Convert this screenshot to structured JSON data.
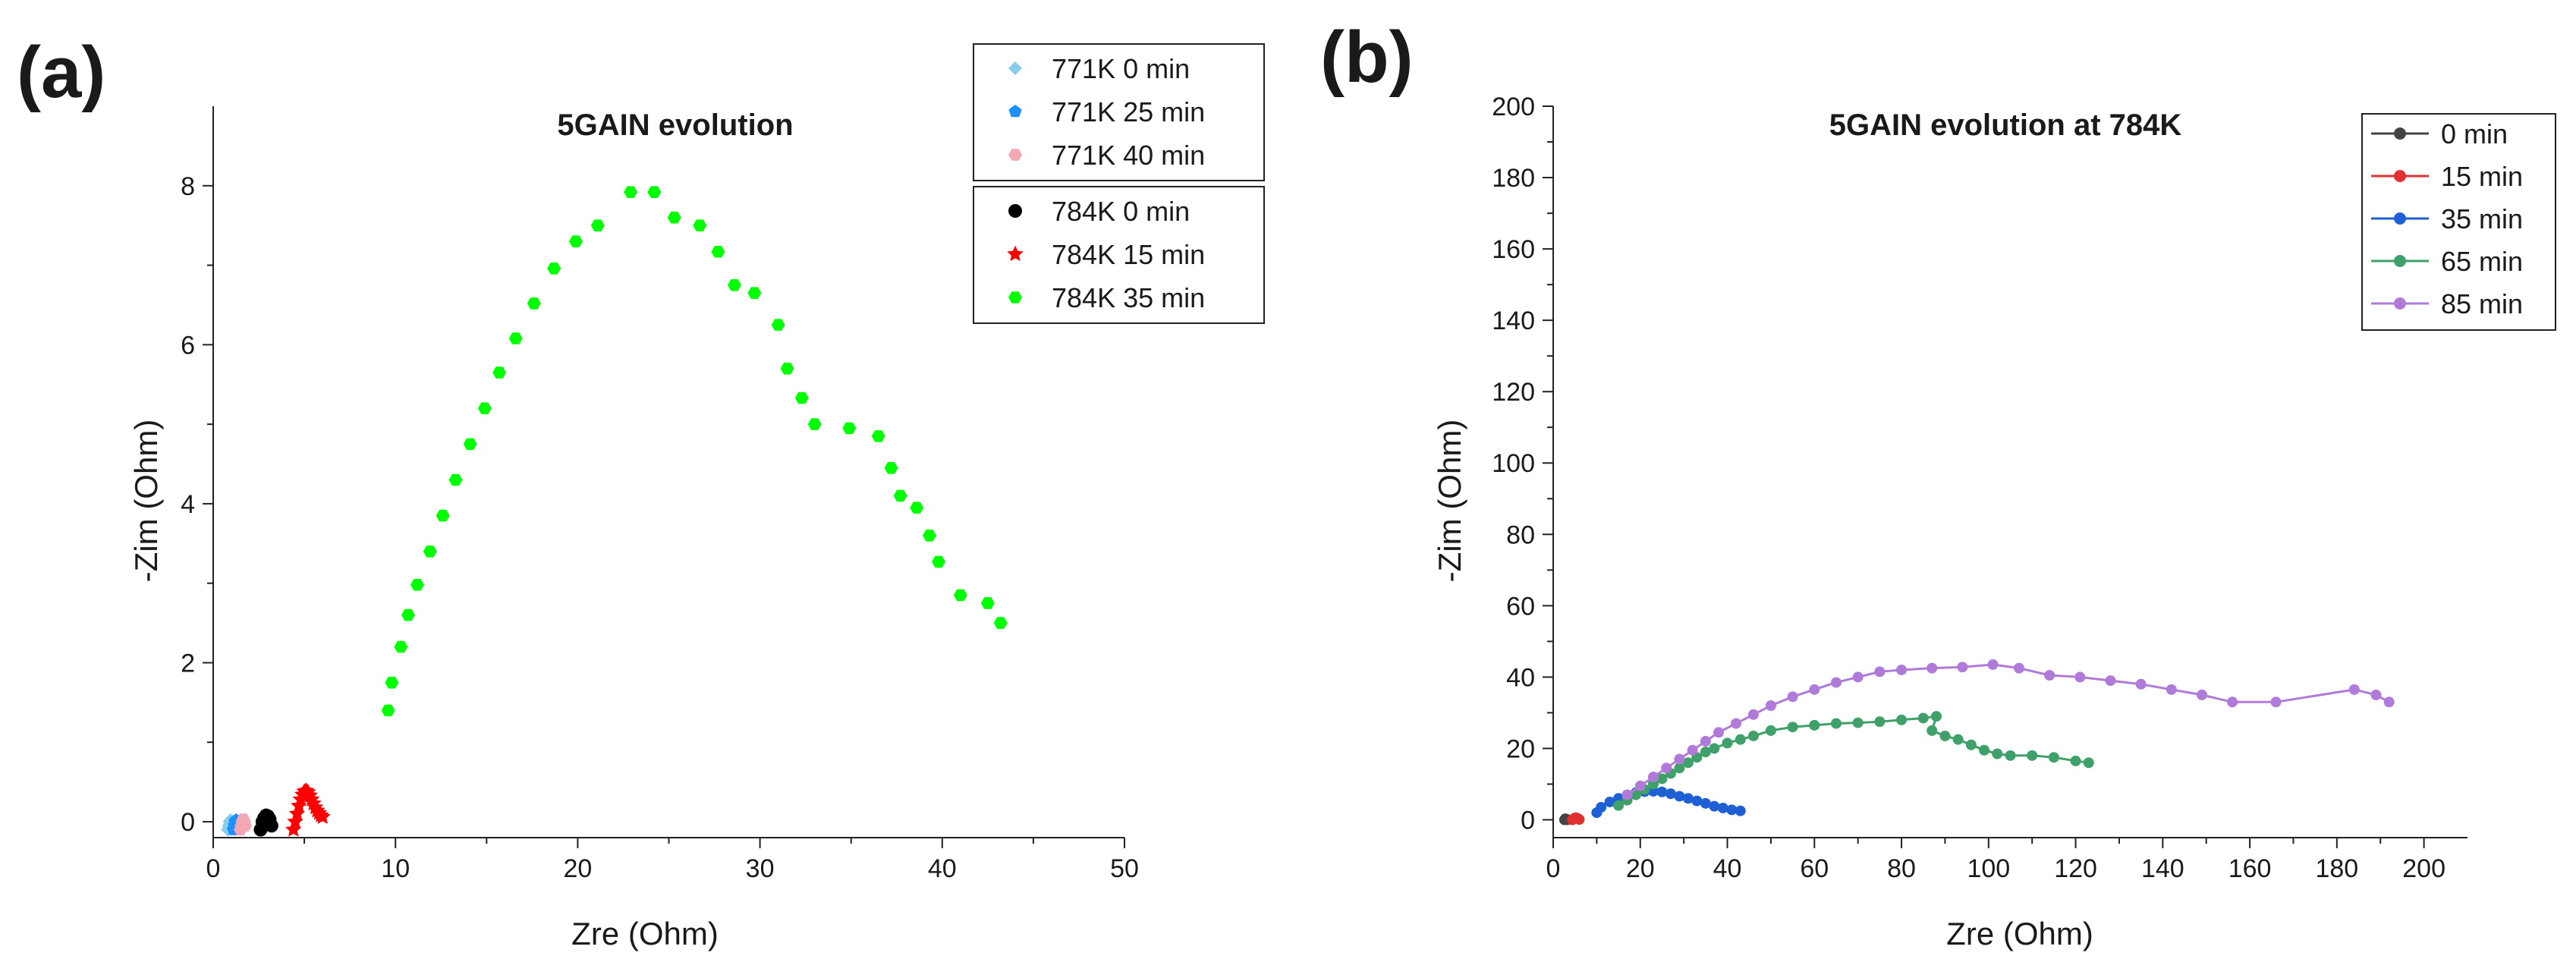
{
  "panels": [
    {
      "label": "(a)"
    },
    {
      "label": "(b)"
    }
  ],
  "chart_data": [
    {
      "type": "scatter",
      "title": "5GAIN evolution",
      "xlabel": "Zre (Ohm)",
      "ylabel": "-Zim (Ohm)",
      "xlim": [
        0,
        50
      ],
      "ylim": [
        -0.2,
        9
      ],
      "xticks": [
        0,
        10,
        20,
        30,
        40,
        50
      ],
      "yticks": [
        0,
        2,
        4,
        6,
        8
      ],
      "legend_groups": [
        [
          "771K  0 min",
          "771K 25 min",
          "771K 40 min"
        ],
        [
          "784K 0 min",
          "784K 15 min",
          "784K 35 min"
        ]
      ],
      "series": [
        {
          "name": "771K  0 min",
          "color": "#87ceeb",
          "marker": "diamond",
          "x": [
            0.8,
            0.85,
            0.9,
            0.95,
            1.0,
            1.05
          ],
          "y": [
            -0.1,
            -0.05,
            0.0,
            0.02,
            0.0,
            -0.05
          ]
        },
        {
          "name": "771K 25 min",
          "color": "#1e90ff",
          "marker": "pentagon",
          "x": [
            1.1,
            1.15,
            1.2,
            1.25,
            1.3
          ],
          "y": [
            -0.1,
            -0.05,
            0.0,
            0.02,
            0.0
          ]
        },
        {
          "name": "771K 40 min",
          "color": "#f4a7b5",
          "marker": "hexagon",
          "x": [
            1.5,
            1.55,
            1.6,
            1.65,
            1.7,
            1.75
          ],
          "y": [
            -0.1,
            -0.05,
            0.0,
            0.03,
            0.0,
            -0.05
          ]
        },
        {
          "name": "784K 0 min",
          "color": "#000000",
          "marker": "circle",
          "x": [
            2.6,
            2.7,
            2.8,
            2.9,
            3.0,
            3.1,
            3.2
          ],
          "y": [
            -0.1,
            0.0,
            0.05,
            0.08,
            0.07,
            0.03,
            -0.05
          ]
        },
        {
          "name": "784K 15 min",
          "color": "#ff0000",
          "marker": "star",
          "x": [
            4.4,
            4.5,
            4.6,
            4.7,
            4.8,
            4.9,
            5.0,
            5.1,
            5.2,
            5.3,
            5.4,
            5.5,
            5.6,
            5.7,
            5.8,
            5.9,
            6.0
          ],
          "y": [
            -0.1,
            0.0,
            0.1,
            0.2,
            0.28,
            0.34,
            0.38,
            0.39,
            0.37,
            0.33,
            0.28,
            0.23,
            0.18,
            0.14,
            0.11,
            0.08,
            0.06
          ]
        },
        {
          "name": "784K 35 min",
          "color": "#00ff00",
          "marker": "hexagon",
          "x": [
            9.6,
            9.8,
            10.3,
            10.7,
            11.2,
            11.9,
            12.6,
            13.3,
            14.1,
            14.9,
            15.7,
            16.6,
            17.6,
            18.7,
            19.9,
            21.1,
            22.9,
            24.2,
            25.3,
            26.7,
            27.7,
            28.6,
            29.7,
            31.0,
            31.5,
            32.3,
            33.0,
            34.9,
            36.5,
            37.2,
            37.7,
            38.6,
            39.3,
            39.8,
            41.0,
            42.5,
            43.2
          ],
          "y": [
            1.4,
            1.75,
            2.2,
            2.6,
            2.98,
            3.4,
            3.85,
            4.3,
            4.75,
            5.2,
            5.65,
            6.08,
            6.52,
            6.96,
            7.3,
            7.5,
            7.92,
            7.92,
            7.6,
            7.5,
            7.17,
            6.75,
            6.65,
            6.25,
            5.7,
            5.33,
            5.0,
            4.95,
            4.85,
            4.45,
            4.1,
            3.95,
            3.6,
            3.27,
            2.85,
            2.75,
            2.5
          ]
        }
      ]
    },
    {
      "type": "line",
      "title": "5GAIN evolution at 784K",
      "xlabel": "Zre (Ohm)",
      "ylabel": "-Zim (Ohm)",
      "xlim": [
        0,
        210
      ],
      "ylim": [
        -5,
        200
      ],
      "xticks": [
        0,
        20,
        40,
        60,
        80,
        100,
        120,
        140,
        160,
        180,
        200
      ],
      "yticks": [
        0,
        20,
        40,
        60,
        80,
        100,
        120,
        140,
        160,
        180,
        200
      ],
      "series": [
        {
          "name": "0 min",
          "color": "#444444",
          "x": [
            2.6,
            2.8,
            3.0,
            3.2
          ],
          "y": [
            0,
            0.3,
            0.2,
            0
          ]
        },
        {
          "name": "15 min",
          "color": "#e03030",
          "x": [
            4.4,
            4.8,
            5.2,
            5.6,
            6.0
          ],
          "y": [
            0,
            0.4,
            0.6,
            0.4,
            0.1
          ]
        },
        {
          "name": "35 min",
          "color": "#1e5fd6",
          "x": [
            10,
            11,
            13,
            15,
            17,
            19,
            21,
            23,
            25,
            27,
            29,
            31,
            33,
            35,
            37,
            39,
            41,
            43
          ],
          "y": [
            2,
            3.5,
            5,
            6,
            7,
            7.6,
            7.9,
            8,
            7.8,
            7.3,
            6.6,
            6,
            5.3,
            4.6,
            3.8,
            3.3,
            2.8,
            2.5
          ]
        },
        {
          "name": "65 min",
          "color": "#3fa06a",
          "x": [
            15,
            17,
            19,
            21,
            23,
            25,
            27,
            29,
            31,
            33,
            35,
            37,
            40,
            43,
            46,
            50,
            55,
            60,
            65,
            70,
            75,
            80,
            85,
            88,
            87,
            90,
            93,
            96,
            99,
            102,
            105,
            110,
            115,
            120,
            123
          ],
          "y": [
            4,
            5.5,
            7,
            8.5,
            10,
            11.5,
            13,
            14.5,
            16,
            17.5,
            19,
            20,
            21.5,
            22.5,
            23.5,
            25,
            26,
            26.5,
            27,
            27.2,
            27.5,
            28,
            28.5,
            29,
            25,
            23.5,
            22.5,
            21,
            19.5,
            18.5,
            18,
            18,
            17.5,
            16.5,
            16
          ]
        },
        {
          "name": "85 min",
          "color": "#b07ad9",
          "x": [
            17,
            20,
            23,
            26,
            29,
            32,
            35,
            38,
            42,
            46,
            50,
            55,
            60,
            65,
            70,
            75,
            80,
            87,
            94,
            101,
            107,
            114,
            121,
            128,
            135,
            142,
            149,
            156,
            166,
            184,
            189,
            192
          ],
          "y": [
            7,
            9.5,
            12,
            14.5,
            17,
            19.5,
            22,
            24.5,
            27,
            29.5,
            32,
            34.5,
            36.5,
            38.5,
            40,
            41.5,
            42,
            42.5,
            42.8,
            43.5,
            42.5,
            40.5,
            40,
            39,
            38,
            36.5,
            35,
            33,
            33,
            36.5,
            35,
            33
          ]
        }
      ]
    }
  ]
}
